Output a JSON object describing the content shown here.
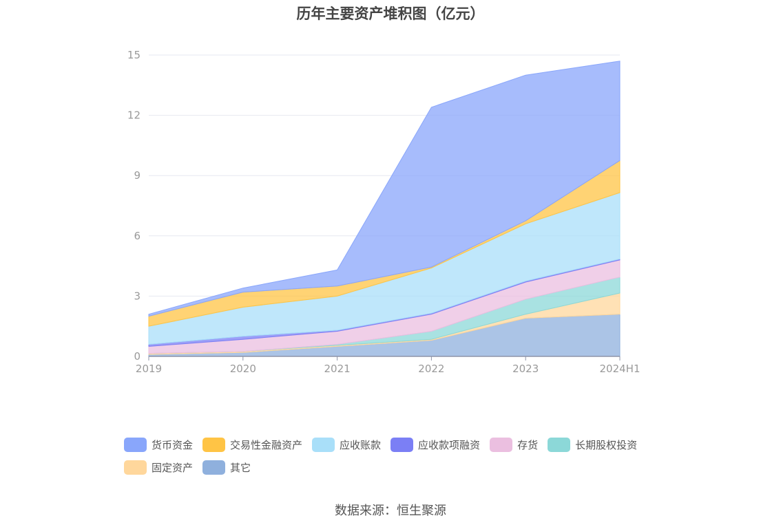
{
  "title": "历年主要资产堆积图（亿元）",
  "source": "数据来源：恒生聚源",
  "chart_data": {
    "type": "area",
    "stacked": true,
    "title": "历年主要资产堆积图（亿元）",
    "x": [
      "2019",
      "2020",
      "2021",
      "2022",
      "2023",
      "2024H1"
    ],
    "yticks": [
      "0",
      "3",
      "6",
      "9",
      "12",
      "15"
    ],
    "ylim": [
      0,
      15
    ],
    "grid": true,
    "legend_position": "bottom",
    "series": [
      {
        "name": "其它",
        "color": "#8fb0dd",
        "values": [
          0.1,
          0.2,
          0.5,
          0.8,
          1.9,
          2.1
        ]
      },
      {
        "name": "固定资产",
        "color": "#ffd79c",
        "values": [
          0.05,
          0.05,
          0.05,
          0.05,
          0.2,
          1.05
        ]
      },
      {
        "name": "长期股权投资",
        "color": "#8cd8d8",
        "values": [
          0.0,
          0.0,
          0.05,
          0.4,
          0.75,
          0.8
        ]
      },
      {
        "name": "存货",
        "color": "#ebbfe0",
        "values": [
          0.35,
          0.6,
          0.65,
          0.85,
          0.85,
          0.85
        ]
      },
      {
        "name": "应收款项融资",
        "color": "#7b7ff5",
        "values": [
          0.1,
          0.15,
          0.05,
          0.05,
          0.05,
          0.05
        ]
      },
      {
        "name": "应收账款",
        "color": "#a9dff9",
        "values": [
          0.9,
          1.45,
          1.7,
          2.25,
          2.85,
          3.3
        ]
      },
      {
        "name": "交易性金融资产",
        "color": "#ffc445",
        "values": [
          0.5,
          0.75,
          0.5,
          0.05,
          0.15,
          1.6
        ]
      },
      {
        "name": "货币资金",
        "color": "#89a6fb",
        "values": [
          0.1,
          0.2,
          0.8,
          7.95,
          7.25,
          4.95
        ]
      }
    ]
  },
  "legend": {
    "rows": [
      [
        {
          "label": "货币资金",
          "color": "#89a6fb"
        },
        {
          "label": "交易性金融资产",
          "color": "#ffc445"
        },
        {
          "label": "应收账款",
          "color": "#a9dff9"
        },
        {
          "label": "应收款项融资",
          "color": "#7b7ff5"
        },
        {
          "label": "存货",
          "color": "#ebbfe0"
        },
        {
          "label": "长期股权投资",
          "color": "#8cd8d8"
        }
      ],
      [
        {
          "label": "固定资产",
          "color": "#ffd79c"
        },
        {
          "label": "其它",
          "color": "#8fb0dd"
        }
      ]
    ]
  }
}
